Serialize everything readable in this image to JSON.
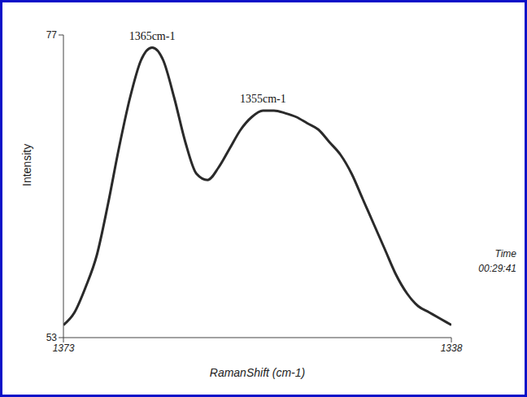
{
  "chart_data": {
    "type": "line",
    "x_label": "RamanShift (cm-1)",
    "y_label": "Intensity",
    "z_label": "Time",
    "z_ticks": [
      "00:29:41"
    ],
    "x": [
      1338,
      1339,
      1340,
      1341,
      1342,
      1343,
      1344,
      1345,
      1346,
      1347,
      1348,
      1349,
      1350,
      1351,
      1352,
      1353,
      1354,
      1355,
      1356,
      1357,
      1358,
      1359,
      1360,
      1361,
      1362,
      1363,
      1364,
      1365,
      1366,
      1367,
      1368,
      1369,
      1370,
      1371,
      1372,
      1373
    ],
    "values": [
      54,
      54.5,
      55,
      55.5,
      56.5,
      58,
      60,
      62,
      64,
      66,
      67.5,
      68.5,
      69.5,
      70,
      70.5,
      70.8,
      71,
      71,
      70.5,
      69.5,
      68,
      66.5,
      65.5,
      66,
      68.5,
      72,
      75,
      76,
      75,
      72,
      68,
      63.5,
      59.5,
      57,
      55,
      54
    ],
    "color": "#2a2a2a",
    "xlim": [
      1338,
      1373
    ],
    "xticks": [
      1338,
      1373
    ],
    "ylim": [
      53,
      77
    ],
    "yticks": [
      53,
      77
    ],
    "grid": false,
    "annotations": [
      {
        "text": "1365cm-1",
        "x": 1365,
        "y": 76
      },
      {
        "text": "1355cm-1",
        "x": 1355,
        "y": 71
      }
    ]
  }
}
